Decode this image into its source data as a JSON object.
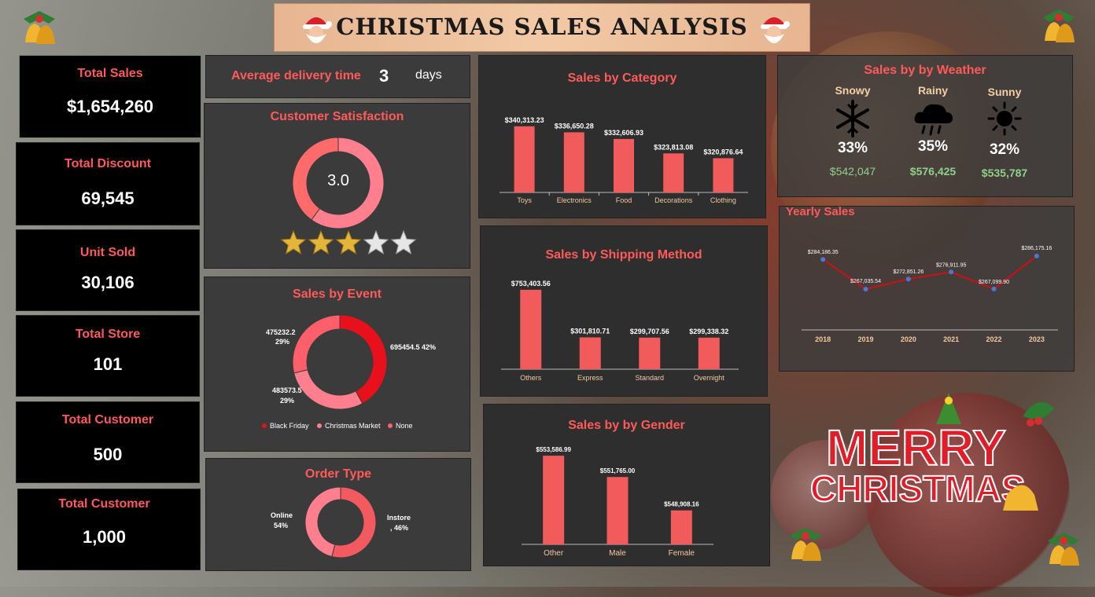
{
  "header": {
    "title": "CHRISTMAS SALES ANALYSIS"
  },
  "kpis": [
    {
      "title": "Total Sales",
      "value": "$1,654,260"
    },
    {
      "title": "Total Discount",
      "value": "69,545"
    },
    {
      "title": "Unit Sold",
      "value": "30,106"
    },
    {
      "title": "Total Store",
      "value": "101"
    },
    {
      "title": "Total Customer",
      "value": "500"
    },
    {
      "title": "Total Customer",
      "value": "1,000"
    }
  ],
  "delivery": {
    "label": "Average delivery time",
    "value": "3",
    "unit": "days"
  },
  "satisfaction": {
    "title": "Customer Satisfaction",
    "value_label": "3.0",
    "rating": 3.0,
    "max": 5
  },
  "colors": {
    "accent": "#ff5a5a",
    "bar": "#f15b5b",
    "pink": "#ff7f8f",
    "red": "#e8101a",
    "green": "#8fd18a",
    "line": "#cc1111",
    "point": "#4a78d8"
  },
  "event": {
    "title": "Sales by Event",
    "labels": [
      "695454.5 42%",
      "475232.2",
      "29%",
      "483573.5",
      "29%"
    ],
    "legend": [
      "Black Friday",
      "Christmas Market",
      "None"
    ]
  },
  "order": {
    "title": "Order Type",
    "labels": [
      "Online",
      "54%",
      "Instore",
      ", 46%"
    ]
  },
  "weather": {
    "title": "Sales by by Weather",
    "items": [
      {
        "name": "Snowy",
        "pct": "33%",
        "amount": "$542,047",
        "icon": "snowflake-icon"
      },
      {
        "name": "Rainy",
        "pct": "35%",
        "amount": "$576,425",
        "icon": "rain-cloud-icon"
      },
      {
        "name": "Sunny",
        "pct": "32%",
        "amount": "$535,787",
        "icon": "sun-icon"
      }
    ]
  },
  "decor": {
    "merry": "MERRY",
    "christmas": "CHRISTMAS"
  },
  "chart_data": [
    {
      "id": "category",
      "type": "bar",
      "title": "Sales by Category",
      "categories": [
        "Toys",
        "Electronics",
        "Food",
        "Decorations",
        "Clothing"
      ],
      "values": [
        340313.23,
        336650.28,
        332606.93,
        323813.08,
        320876.64
      ],
      "data_labels": [
        "$340,313.23",
        "$336,650.28",
        "$332,606.93",
        "$323,813.08",
        "$320,876.64"
      ],
      "ylim": [
        300000,
        345000
      ]
    },
    {
      "id": "shipping",
      "type": "bar",
      "title": "Sales by  Shipping Method",
      "categories": [
        "Others",
        "Express",
        "Standard",
        "Overnight"
      ],
      "values": [
        753403.56,
        301810.71,
        299707.56,
        299338.32
      ],
      "data_labels": [
        "$753,403.56",
        "$301,810.71",
        "$299,707.56",
        "$299,338.32"
      ],
      "ylim": [
        0,
        760000
      ]
    },
    {
      "id": "gender",
      "type": "bar",
      "title": "Sales by by Gender",
      "categories": [
        "Other",
        "Male",
        "Female"
      ],
      "values": [
        553586.99,
        551765.0,
        548908.16
      ],
      "data_labels": [
        "$553,586.99",
        "$551,765.00",
        "$548,908.16"
      ],
      "ylim": [
        546000,
        554200
      ]
    },
    {
      "id": "yearly",
      "type": "line",
      "title": "Yearly Sales",
      "categories": [
        "2018",
        "2019",
        "2020",
        "2021",
        "2022",
        "2023"
      ],
      "values": [
        284186.35,
        267035.54,
        272851.26,
        276911.95,
        267099.9,
        286175.16
      ],
      "data_labels": [
        "$284,186.35",
        "$267,035.54",
        "$272,851.26",
        "$276,911.95",
        "$267,099.90",
        "$286,175.16"
      ],
      "ylim": [
        258000,
        292000
      ]
    },
    {
      "id": "event",
      "type": "pie",
      "title": "Sales by Event",
      "categories": [
        "Black Friday",
        "Christmas Market",
        "None"
      ],
      "values": [
        695454.5,
        483573.5,
        475232.2
      ]
    },
    {
      "id": "order",
      "type": "pie",
      "title": "Order Type",
      "categories": [
        "Online",
        "Instore"
      ],
      "values": [
        54,
        46
      ]
    }
  ]
}
